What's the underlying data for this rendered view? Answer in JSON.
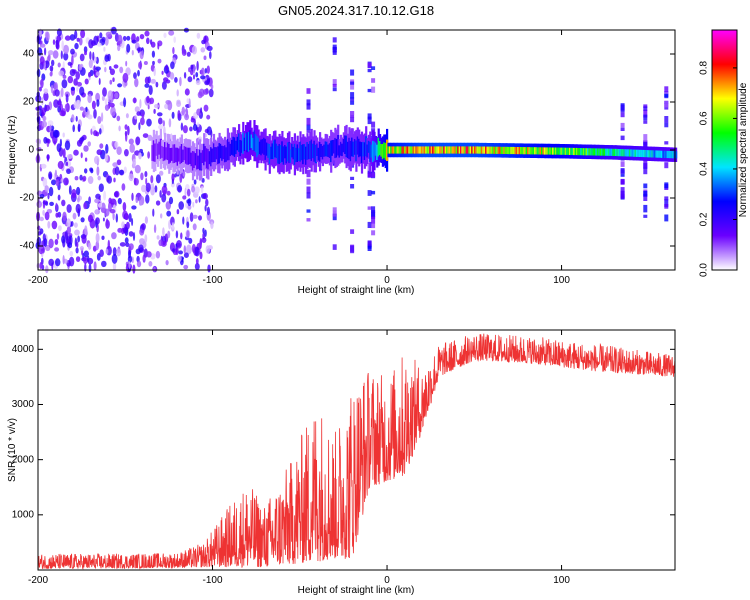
{
  "title": "GN05.2024.317.10.12.G18",
  "chart_data": [
    {
      "type": "heatmap",
      "xlabel": "Height of straight line (km)",
      "ylabel": "Frequency (Hz)",
      "xlim": [
        -200,
        165
      ],
      "ylim": [
        -50,
        50
      ],
      "xticks": [
        -200,
        -100,
        0,
        100
      ],
      "yticks": [
        -40,
        -20,
        0,
        20,
        40
      ],
      "colorbar": {
        "label": "Normalized spectral amplitude",
        "range": [
          0.0,
          0.95
        ],
        "ticks": [
          0.0,
          0.2,
          0.4,
          0.6,
          0.8
        ],
        "tick_labels": [
          "0.0",
          "0.2",
          "0.4",
          "0.6",
          "0.8"
        ],
        "colors": [
          "#ffffff",
          "#6a00ff",
          "#0000ff",
          "#00e5ff",
          "#00ff00",
          "#ffff00",
          "#ff0000",
          "#ff00ff"
        ]
      },
      "ridge": [
        {
          "x": -130,
          "freq": 0,
          "amplitude": 0.15
        },
        {
          "x": -110,
          "freq": -4,
          "amplitude": 0.2
        },
        {
          "x": -90,
          "freq": 0,
          "amplitude": 0.3
        },
        {
          "x": -80,
          "freq": 4,
          "amplitude": 0.4
        },
        {
          "x": -70,
          "freq": 0,
          "amplitude": 0.35
        },
        {
          "x": -50,
          "freq": -2,
          "amplitude": 0.35
        },
        {
          "x": -30,
          "freq": 1,
          "amplitude": 0.3
        },
        {
          "x": -10,
          "freq": 0,
          "amplitude": 0.35
        },
        {
          "x": 0,
          "freq": 0,
          "amplitude": 0.8
        },
        {
          "x": 20,
          "freq": 0,
          "amplitude": 0.9
        },
        {
          "x": 50,
          "freq": 0,
          "amplitude": 0.9
        },
        {
          "x": 100,
          "freq": -0.5,
          "amplitude": 0.75
        },
        {
          "x": 130,
          "freq": -1,
          "amplitude": 0.55
        },
        {
          "x": 165,
          "freq": -2,
          "amplitude": 0.45
        }
      ]
    },
    {
      "type": "line",
      "xlabel": "Height of straight line (km)",
      "ylabel": "SNR (10 * v/v)",
      "xlim": [
        -200,
        165
      ],
      "ylim": [
        0,
        4350
      ],
      "xticks": [
        -200,
        -100,
        0,
        100
      ],
      "yticks": [
        1000,
        2000,
        3000,
        4000
      ],
      "color": "#ee3333",
      "envelope": [
        {
          "x": -200,
          "low": 20,
          "high": 300
        },
        {
          "x": -150,
          "low": 30,
          "high": 300
        },
        {
          "x": -120,
          "low": 40,
          "high": 320
        },
        {
          "x": -105,
          "low": 50,
          "high": 500
        },
        {
          "x": -90,
          "low": 50,
          "high": 1200
        },
        {
          "x": -80,
          "low": 50,
          "high": 1600
        },
        {
          "x": -70,
          "low": 50,
          "high": 1200
        },
        {
          "x": -55,
          "low": 100,
          "high": 2000
        },
        {
          "x": -40,
          "low": 150,
          "high": 3200
        },
        {
          "x": -30,
          "low": 200,
          "high": 2500
        },
        {
          "x": -20,
          "low": 200,
          "high": 3500
        },
        {
          "x": -10,
          "low": 1500,
          "high": 3700
        },
        {
          "x": 0,
          "low": 1600,
          "high": 3500
        },
        {
          "x": 10,
          "low": 1700,
          "high": 4000
        },
        {
          "x": 20,
          "low": 2500,
          "high": 3700
        },
        {
          "x": 30,
          "low": 3500,
          "high": 4100
        },
        {
          "x": 50,
          "low": 3800,
          "high": 4300
        },
        {
          "x": 80,
          "low": 3750,
          "high": 4250
        },
        {
          "x": 120,
          "low": 3600,
          "high": 4100
        },
        {
          "x": 165,
          "low": 3500,
          "high": 3900
        }
      ]
    }
  ]
}
